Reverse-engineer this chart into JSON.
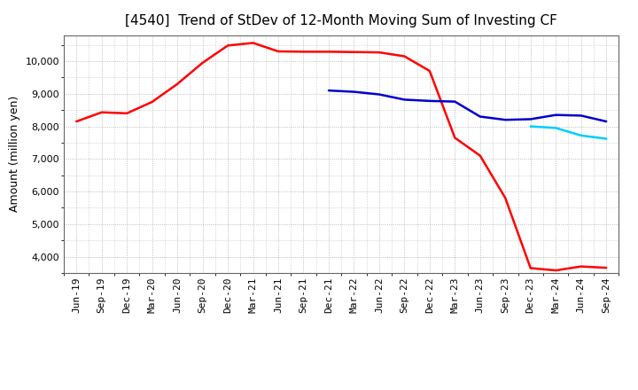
{
  "title": "[4540]  Trend of StDev of 12-Month Moving Sum of Investing CF",
  "ylabel": "Amount (million yen)",
  "background_color": "#ffffff",
  "grid_color": "#aaaaaa",
  "ylim": [
    3500,
    10800
  ],
  "yticks": [
    4000,
    5000,
    6000,
    7000,
    8000,
    9000,
    10000
  ],
  "x_labels": [
    "Jun-19",
    "Sep-19",
    "Dec-19",
    "Mar-20",
    "Jun-20",
    "Sep-20",
    "Dec-20",
    "Mar-21",
    "Jun-21",
    "Sep-21",
    "Dec-21",
    "Mar-22",
    "Jun-22",
    "Sep-22",
    "Dec-22",
    "Mar-23",
    "Jun-23",
    "Sep-23",
    "Dec-23",
    "Mar-24",
    "Jun-24",
    "Sep-24"
  ],
  "series_3y": {
    "color": "#ff0000",
    "data": [
      8150,
      8430,
      8400,
      8750,
      9300,
      9950,
      10480,
      10560,
      10300,
      10290,
      10290,
      10280,
      10270,
      10150,
      9700,
      7650,
      7100,
      5800,
      3650,
      3580,
      3700,
      3660
    ]
  },
  "series_5y": {
    "color": "#0000cc",
    "data": [
      null,
      null,
      null,
      null,
      null,
      null,
      null,
      null,
      null,
      null,
      9100,
      9060,
      8980,
      8820,
      8780,
      8760,
      8300,
      8200,
      8220,
      8350,
      8330,
      8150
    ]
  },
  "series_7y": {
    "color": "#00ccff",
    "data": [
      null,
      null,
      null,
      null,
      null,
      null,
      null,
      null,
      null,
      null,
      null,
      null,
      null,
      null,
      null,
      null,
      null,
      null,
      8000,
      7950,
      7720,
      7620
    ]
  },
  "series_10y": {
    "color": "#008000",
    "data": [
      null,
      null,
      null,
      null,
      null,
      null,
      null,
      null,
      null,
      null,
      null,
      null,
      null,
      null,
      null,
      null,
      null,
      null,
      null,
      null,
      null,
      null
    ]
  },
  "title_fontsize": 11,
  "ylabel_fontsize": 9,
  "tick_fontsize": 8,
  "legend_fontsize": 9
}
